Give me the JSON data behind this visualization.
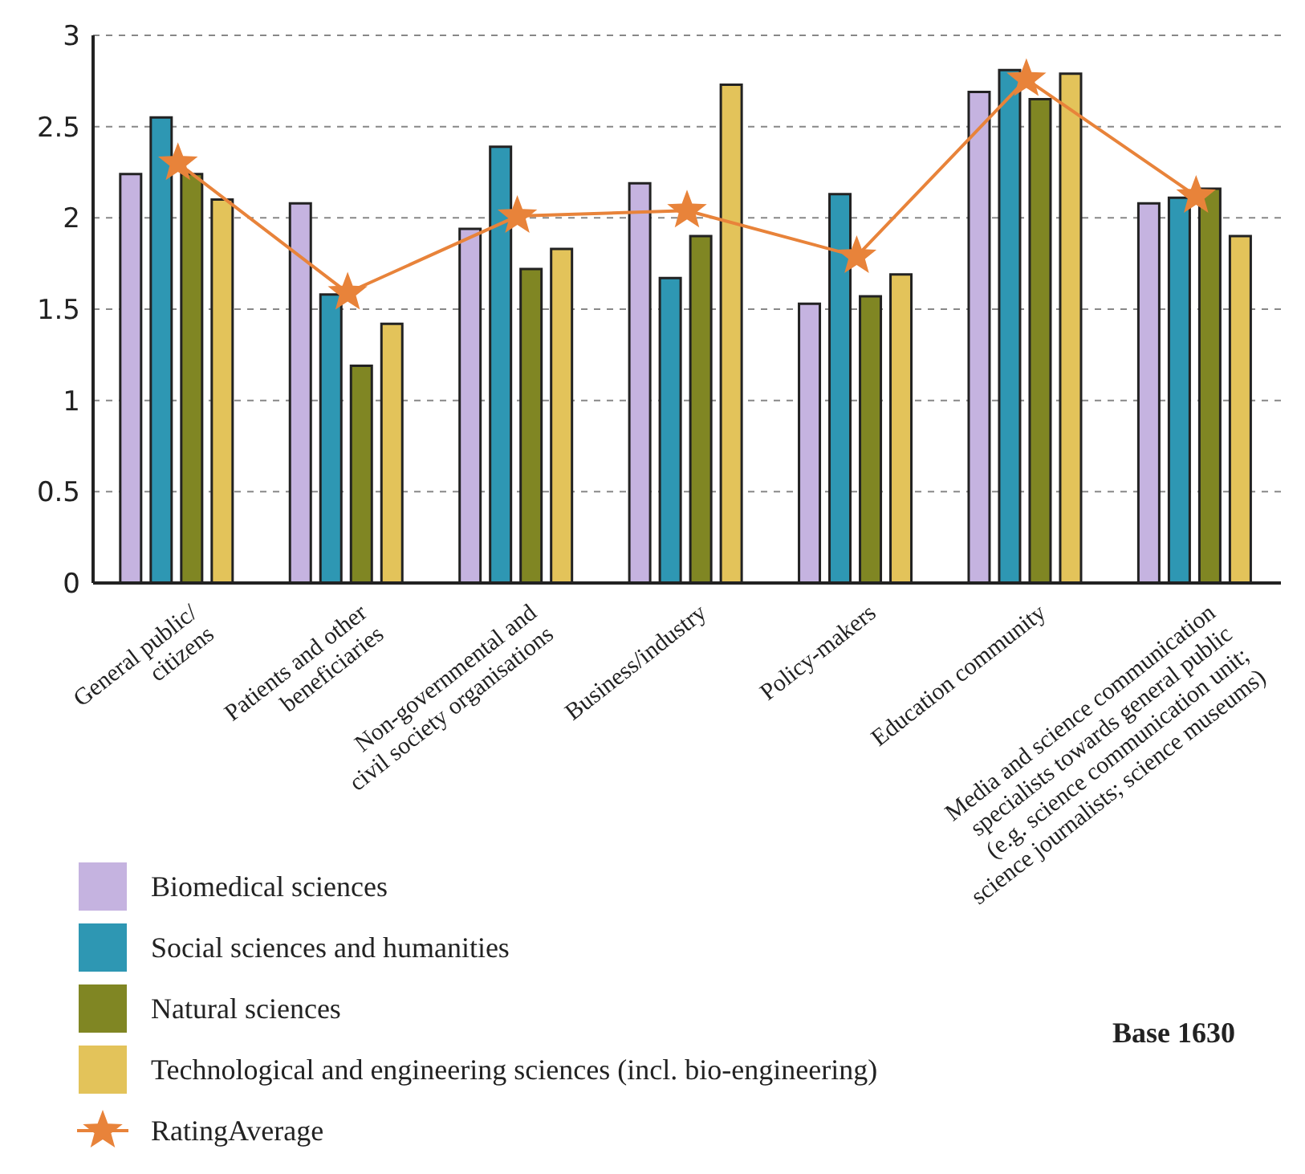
{
  "chart_data": {
    "type": "bar",
    "categories": [
      "General public/\ncitizens",
      "Patients and other\nbeneficiaries",
      "Non-governmental and\ncivil society organisations",
      "Business/industry",
      "Policy-makers",
      "Education community",
      "Media and science communication\nspecialists towards general public\n(e.g. science communication unit;\nscience journalists; science museums)"
    ],
    "series": [
      {
        "name": "Biomedical sciences",
        "color": "#c5b3e0",
        "values": [
          2.24,
          2.08,
          1.94,
          2.19,
          1.53,
          2.69,
          2.08
        ]
      },
      {
        "name": "Social sciences and humanities",
        "color": "#2e97b3",
        "values": [
          2.55,
          1.58,
          2.39,
          1.67,
          2.13,
          2.81,
          2.11
        ]
      },
      {
        "name": "Natural sciences",
        "color": "#808623",
        "values": [
          2.24,
          1.19,
          1.72,
          1.9,
          1.57,
          2.65,
          2.16
        ]
      },
      {
        "name": "Technological and engineering sciences (incl. bio-engineering)",
        "color": "#e3c35a",
        "values": [
          2.1,
          1.42,
          1.83,
          2.73,
          1.69,
          2.79,
          1.9
        ]
      },
      {
        "name": "RatingAverage",
        "type": "line",
        "color": "#e8833a",
        "marker": "star",
        "values": [
          2.3,
          1.59,
          2.01,
          2.04,
          1.79,
          2.76,
          2.12
        ]
      }
    ],
    "ylim": [
      0,
      3
    ],
    "yticks": [
      0,
      0.5,
      1,
      1.5,
      2,
      2.5,
      3
    ],
    "grid": "y",
    "legend": "bottom left",
    "annotations": [
      "Base 1630"
    ]
  }
}
